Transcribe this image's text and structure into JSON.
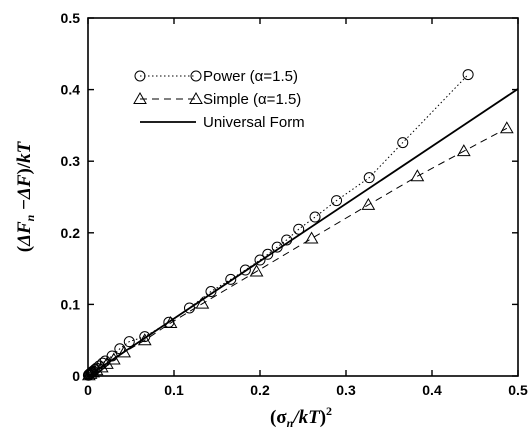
{
  "chart_data": {
    "type": "line",
    "xlabel": "(σn/kT)²",
    "ylabel": "(ΔFn−ΔF)/kT",
    "xlim": [
      0,
      0.5
    ],
    "ylim": [
      0,
      0.5
    ],
    "x_ticks": [
      "0",
      "0.1",
      "0.2",
      "0.3",
      "0.4",
      "0.5"
    ],
    "y_ticks": [
      "0",
      "0.1",
      "0.2",
      "0.3",
      "0.4",
      "0.5"
    ],
    "grid": false,
    "legend_position": "top-left",
    "series": [
      {
        "name": "Power (α=1.5)",
        "marker": "circle",
        "line": "dotted",
        "color": "#000000",
        "x": [
          0.0005,
          0.001,
          0.002,
          0.003,
          0.004,
          0.005,
          0.006,
          0.008,
          0.01,
          0.013,
          0.017,
          0.02,
          0.028,
          0.037,
          0.048,
          0.066,
          0.094,
          0.118,
          0.143,
          0.166,
          0.183,
          0.2,
          0.209,
          0.22,
          0.231,
          0.245,
          0.264,
          0.289,
          0.327,
          0.366,
          0.442
        ],
        "y": [
          0.001,
          0.002,
          0.003,
          0.004,
          0.005,
          0.006,
          0.007,
          0.009,
          0.011,
          0.014,
          0.018,
          0.021,
          0.028,
          0.038,
          0.048,
          0.055,
          0.075,
          0.095,
          0.118,
          0.135,
          0.148,
          0.162,
          0.17,
          0.18,
          0.19,
          0.205,
          0.222,
          0.245,
          0.277,
          0.326,
          0.421
        ]
      },
      {
        "name": "Simple (α=1.5)",
        "marker": "triangle",
        "line": "dashed",
        "color": "#000000",
        "x": [
          0.001,
          0.003,
          0.006,
          0.01,
          0.016,
          0.022,
          0.03,
          0.042,
          0.066,
          0.096,
          0.133,
          0.196,
          0.26,
          0.326,
          0.383,
          0.437,
          0.487
        ],
        "y": [
          0.001,
          0.003,
          0.005,
          0.008,
          0.012,
          0.017,
          0.023,
          0.033,
          0.05,
          0.074,
          0.101,
          0.146,
          0.192,
          0.239,
          0.279,
          0.314,
          0.346
        ]
      },
      {
        "name": "Universal Form",
        "marker": "none",
        "line": "solid",
        "color": "#000000",
        "x": [
          0,
          0.5
        ],
        "y": [
          0,
          0.401
        ]
      }
    ]
  }
}
